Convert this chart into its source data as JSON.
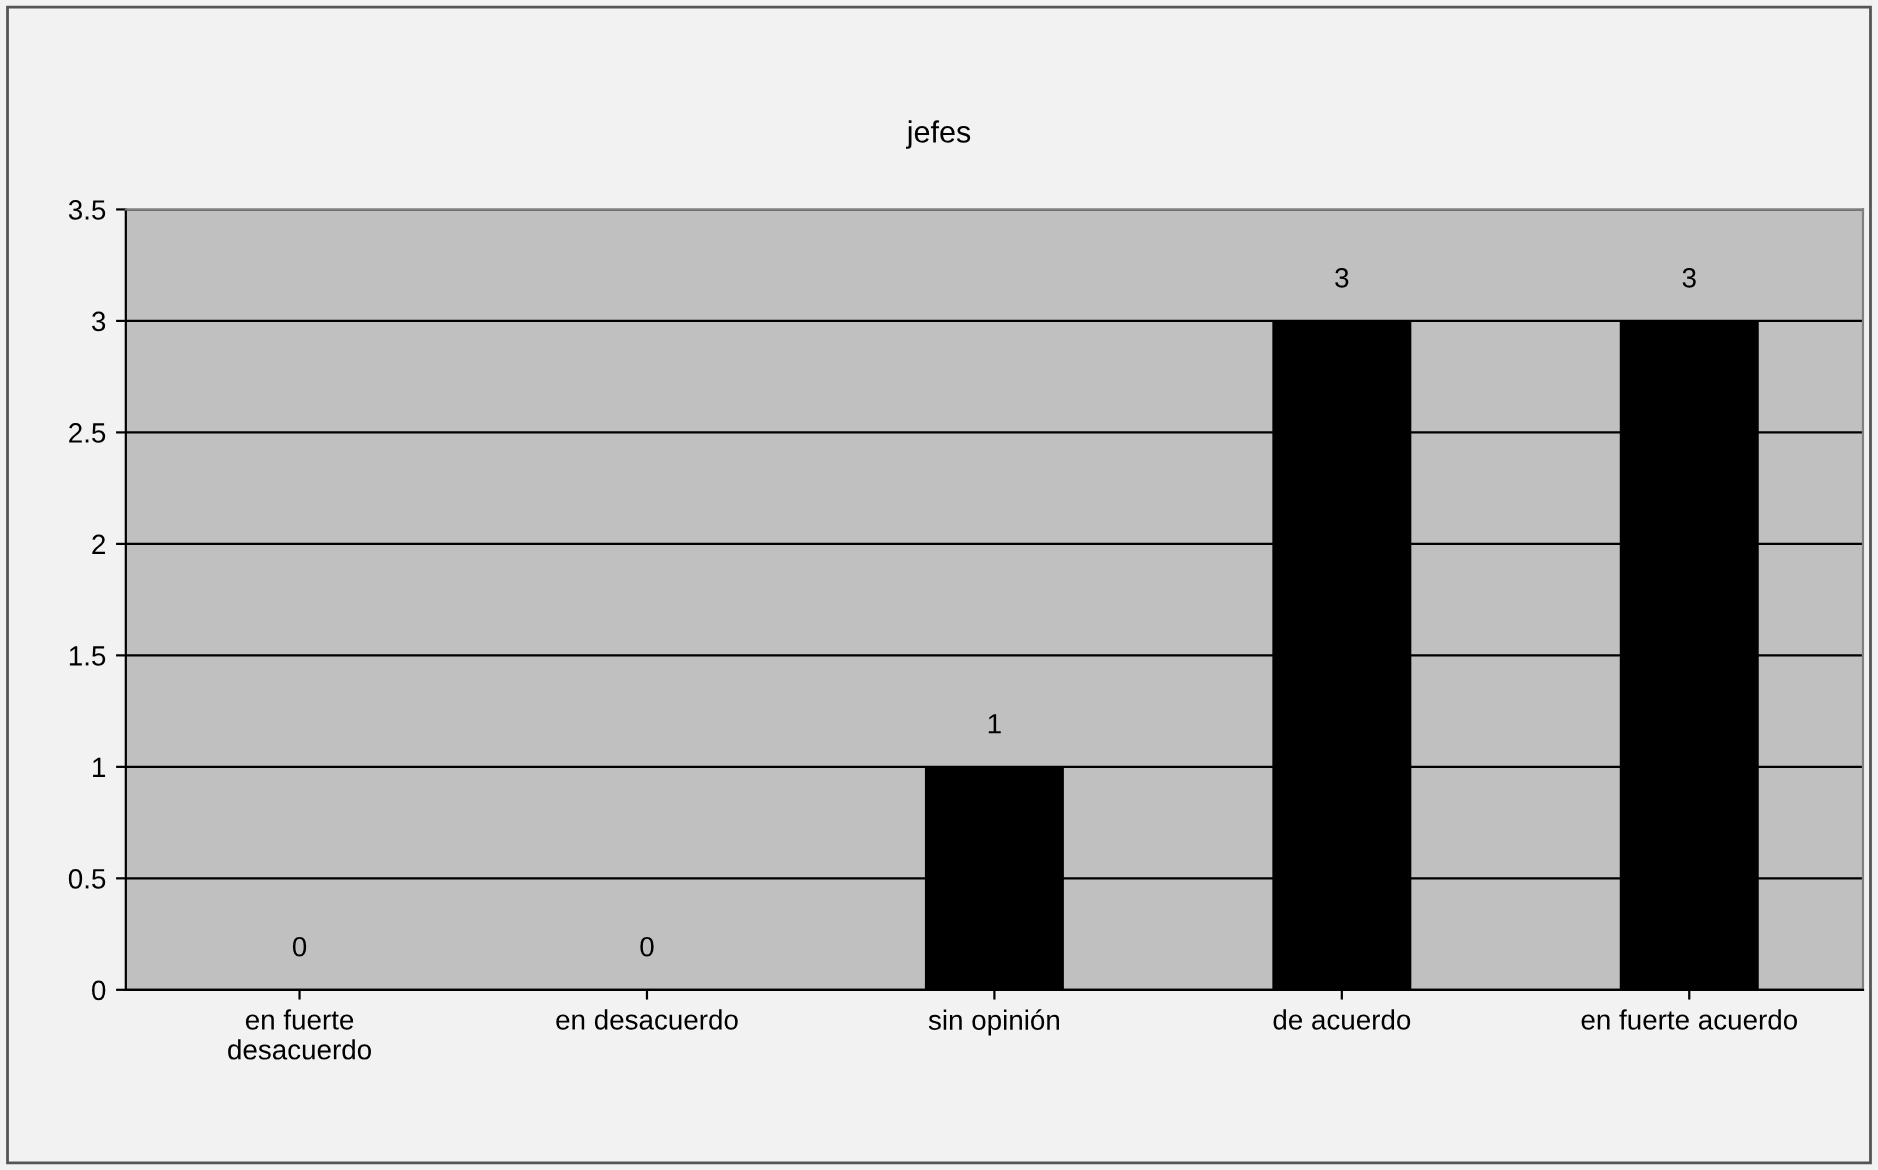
{
  "chart_data": {
    "type": "bar",
    "title": "jefes",
    "categories": [
      "en fuerte\ndesacuerdo",
      "en desacuerdo",
      "sin opinión",
      "de acuerdo",
      "en fuerte acuerdo"
    ],
    "values": [
      0,
      0,
      1,
      3,
      3
    ],
    "color": "#000000",
    "ylim": [
      0,
      3.5
    ],
    "yticks": [
      0,
      0.5,
      1,
      1.5,
      2,
      2.5,
      3,
      3.5
    ],
    "grid": "y",
    "data_labels": true,
    "legend": false
  }
}
